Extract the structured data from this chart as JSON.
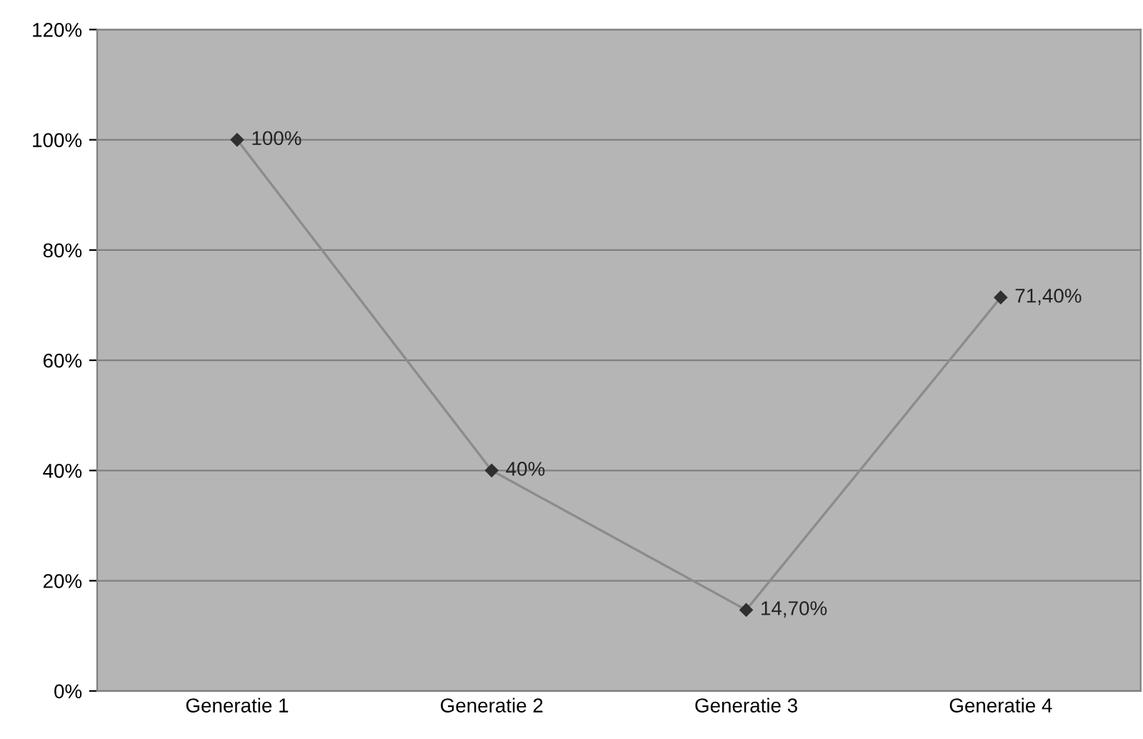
{
  "chart_data": {
    "type": "line",
    "categories": [
      "Generatie 1",
      "Generatie 2",
      "Generatie 3",
      "Generatie 4"
    ],
    "series": [
      {
        "color": "#8c8c8c",
        "values": [
          100,
          40,
          14.7,
          71.4
        ],
        "value_labels": [
          "100%",
          "40%",
          "14,70%",
          "71,40%"
        ]
      }
    ],
    "ylim": [
      0,
      120
    ],
    "yticks": [
      {
        "value": 0,
        "label": "0%"
      },
      {
        "value": 20,
        "label": "20%"
      },
      {
        "value": 40,
        "label": "40%"
      },
      {
        "value": 60,
        "label": "60%"
      },
      {
        "value": 80,
        "label": "80%"
      },
      {
        "value": 100,
        "label": "100%"
      },
      {
        "value": 120,
        "label": "120%"
      }
    ],
    "grid": "y",
    "marker": "diamond",
    "line_style": "solid"
  }
}
